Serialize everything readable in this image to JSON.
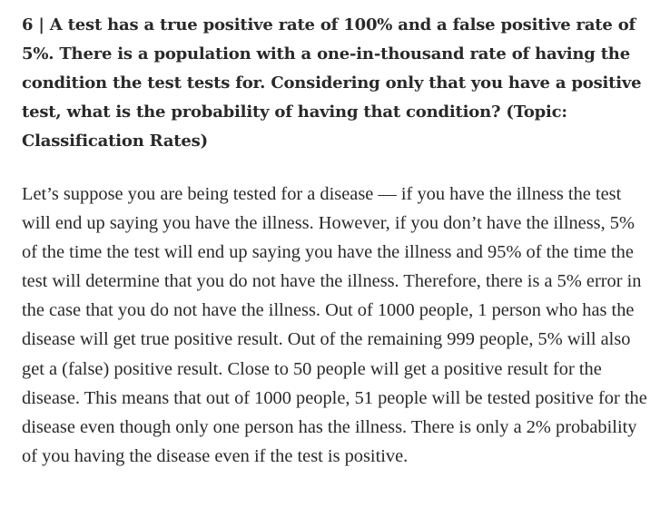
{
  "article": {
    "heading": "6 | A test has a true positive rate of 100% and a false positive rate of 5%. There is a population with a one-in-thousand rate of having the condition the test tests for. Considering only that you have a positive test, what is the probability of having that condition? (Topic: Classification Rates)",
    "paragraph": "Let’s suppose you are being tested for a disease — if you have the illness the test will end up saying you have the illness. However, if you don’t have the illness, 5% of the time the test will end up saying you have the illness and 95% of the time the test will determine that you do not have the illness. Therefore, there is a 5% error in the case that you do not have the illness. Out of 1000 people, 1 person who has the disease will get true positive result. Out of the remaining 999 people, 5% will also get a (false) positive result. Close to 50 people will get a positive result for the disease. This means that out of 1000 people, 51 people will be tested positive for the disease even though only one person has the illness. There is only a 2% probability of you having the disease even if the test is positive."
  }
}
